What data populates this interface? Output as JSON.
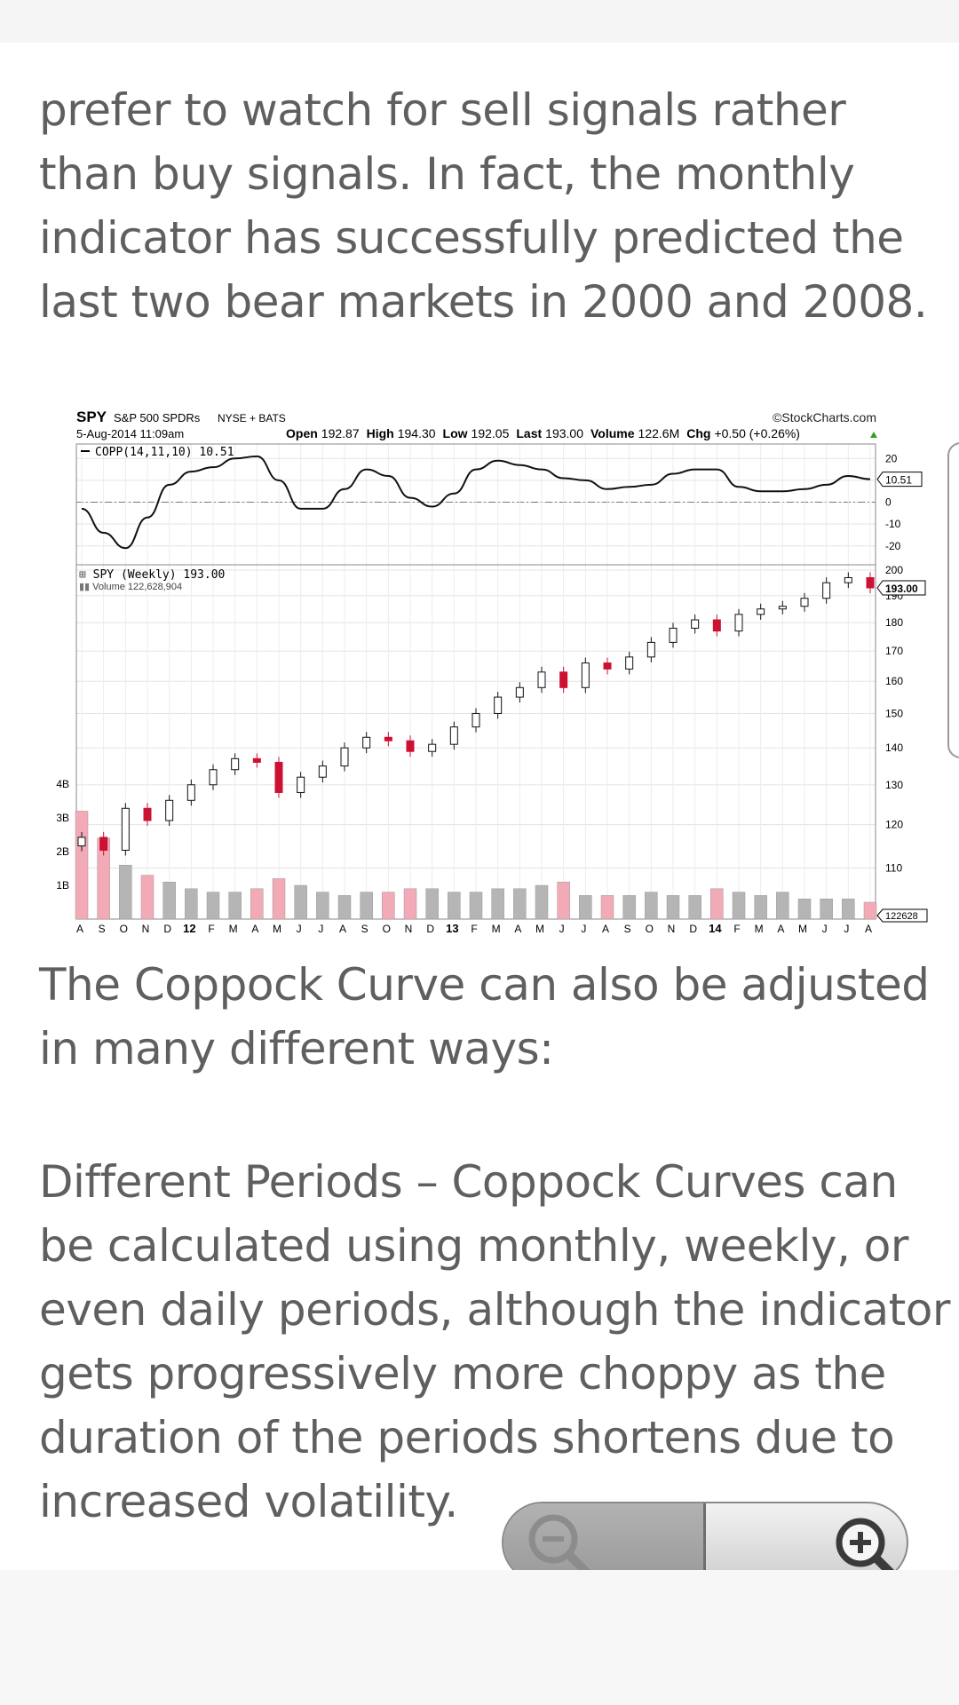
{
  "article": {
    "para1_lines": [
      "prefer to watch for sell signals rather",
      "than buy signals. In fact, the monthly",
      "indicator has successfully predicted the",
      "last two bear markets in 2000 and 2008."
    ],
    "para2_lines": [
      "The Coppock Curve can also be adjusted",
      "in many different ways:"
    ],
    "para3_lines": [
      "Different Periods – Coppock Curves can",
      "be calculated using monthly, weekly, or",
      "even daily periods, although the indicator",
      "gets progressively more choppy as the",
      "duration of the periods shortens due to",
      "increased volatility."
    ]
  },
  "chart_header": {
    "symbol": "SPY",
    "name": "S&P 500 SPDRs",
    "exchange": "NYSE + BATS",
    "source": "©StockCharts.com",
    "datetime": "5-Aug-2014 11:09am",
    "open_label": "Open",
    "open_value": "192.87",
    "high_label": "High",
    "high_value": "194.30",
    "low_label": "Low",
    "low_value": "192.05",
    "last_label": "Last",
    "last_value": "193.00",
    "volume_label": "Volume",
    "volume_value": "122.6M",
    "chg_label": "Chg",
    "chg_value": "+0.50 (+0.26%)",
    "up_arrow_color": "#2e9e2e"
  },
  "zoom": {
    "out_icon": "zoom-out-icon",
    "in_icon": "zoom-in-icon"
  },
  "chart_data": [
    {
      "type": "line",
      "legend": "COPP(14,11,10) 10.51",
      "ylim": [
        -27,
        25
      ],
      "y_ticks": [
        "20",
        "10",
        "0",
        "-10",
        "-20"
      ],
      "last_value_label": "10.51",
      "grid": true,
      "x": [
        "2011-08",
        "2011-09",
        "2011-10",
        "2011-11",
        "2011-12",
        "2012-01",
        "2012-02",
        "2012-03",
        "2012-04",
        "2012-05",
        "2012-06",
        "2012-07",
        "2012-08",
        "2012-09",
        "2012-10",
        "2012-11",
        "2012-12",
        "2013-01",
        "2013-02",
        "2013-03",
        "2013-04",
        "2013-05",
        "2013-06",
        "2013-07",
        "2013-08",
        "2013-09",
        "2013-10",
        "2013-11",
        "2013-12",
        "2014-01",
        "2014-02",
        "2014-03",
        "2014-04",
        "2014-05",
        "2014-06",
        "2014-07",
        "2014-08"
      ],
      "y": [
        -3,
        -14,
        -21,
        -7,
        8,
        14,
        16,
        20,
        21,
        10,
        -3,
        -3,
        6,
        15,
        12,
        2,
        -2,
        4,
        15,
        19,
        17,
        15,
        11,
        10,
        6,
        7,
        8,
        13,
        15,
        15,
        7,
        5,
        5,
        6,
        8,
        12,
        10.51
      ],
      "reference_line": 0
    },
    {
      "type": "candlestick",
      "legend": "SPY (Weekly) 193.00",
      "ylim": [
        100,
        200
      ],
      "y_ticks": [
        "200",
        "190",
        "180",
        "170",
        "160",
        "150",
        "140",
        "130",
        "120",
        "110"
      ],
      "last_value_label": "193.00",
      "x_labels": [
        "A",
        "S",
        "O",
        "N",
        "D",
        "12",
        "F",
        "M",
        "A",
        "M",
        "J",
        "J",
        "A",
        "S",
        "O",
        "N",
        "D",
        "13",
        "F",
        "M",
        "A",
        "M",
        "J",
        "J",
        "A",
        "S",
        "O",
        "N",
        "D",
        "14",
        "F",
        "M",
        "A",
        "M",
        "J",
        "J",
        "A"
      ],
      "x": [
        "2011-08",
        "2011-09",
        "2011-10",
        "2011-11",
        "2011-12",
        "2012-01",
        "2012-02",
        "2012-03",
        "2012-04",
        "2012-05",
        "2012-06",
        "2012-07",
        "2012-08",
        "2012-09",
        "2012-10",
        "2012-11",
        "2012-12",
        "2013-01",
        "2013-02",
        "2013-03",
        "2013-04",
        "2013-05",
        "2013-06",
        "2013-07",
        "2013-08",
        "2013-09",
        "2013-10",
        "2013-11",
        "2013-12",
        "2014-01",
        "2014-02",
        "2014-03",
        "2014-04",
        "2014-05",
        "2014-06",
        "2014-07",
        "2014-08"
      ],
      "close": [
        117,
        114,
        124,
        121,
        126,
        130,
        134,
        137,
        136,
        128,
        132,
        135,
        140,
        143,
        142,
        139,
        141,
        146,
        150,
        155,
        158,
        163,
        158,
        166,
        164,
        168,
        173,
        178,
        181,
        177,
        183,
        185,
        186,
        189,
        195,
        197,
        193
      ],
      "grid": true
    },
    {
      "type": "bar",
      "legend": "Volume 122,628,904",
      "ylim": [
        0,
        5
      ],
      "y_ticks": [
        "4B",
        "3B",
        "2B",
        "1B"
      ],
      "last_value_label": "122628",
      "unit": "B",
      "x": [
        "2011-08",
        "2011-09",
        "2011-10",
        "2011-11",
        "2011-12",
        "2012-01",
        "2012-02",
        "2012-03",
        "2012-04",
        "2012-05",
        "2012-06",
        "2012-07",
        "2012-08",
        "2012-09",
        "2012-10",
        "2012-11",
        "2012-12",
        "2013-01",
        "2013-02",
        "2013-03",
        "2013-04",
        "2013-05",
        "2013-06",
        "2013-07",
        "2013-08",
        "2013-09",
        "2013-10",
        "2013-11",
        "2013-12",
        "2014-01",
        "2014-02",
        "2014-03",
        "2014-04",
        "2014-05",
        "2014-06",
        "2014-07",
        "2014-08"
      ],
      "values": [
        3.2,
        2.4,
        1.6,
        1.3,
        1.1,
        0.9,
        0.8,
        0.8,
        0.9,
        1.2,
        1.0,
        0.8,
        0.7,
        0.8,
        0.8,
        0.9,
        0.9,
        0.8,
        0.8,
        0.9,
        0.9,
        1.0,
        1.1,
        0.7,
        0.7,
        0.7,
        0.8,
        0.7,
        0.7,
        0.9,
        0.8,
        0.7,
        0.8,
        0.6,
        0.6,
        0.6,
        0.5
      ]
    }
  ]
}
